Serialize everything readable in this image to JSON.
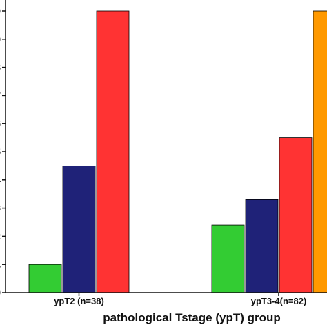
{
  "chart_data": {
    "type": "bar",
    "xlabel": "pathological Tstage (ypT) group",
    "ylabel": "",
    "ylim": [
      0,
      10
    ],
    "yticks": [
      0,
      1,
      2,
      3,
      4,
      5,
      6,
      7,
      8,
      9,
      10
    ],
    "categories": [
      "ypT2 (n=38)",
      "ypT3-4(n=82)"
    ],
    "series": [
      {
        "color": "#33cc33",
        "values": [
          1.0,
          2.4
        ]
      },
      {
        "color": "#1f2278",
        "values": [
          4.5,
          3.3
        ]
      },
      {
        "color": "#ff3333",
        "values": [
          10.0,
          5.5
        ]
      },
      {
        "color": "#ff9900",
        "values": [
          null,
          10.0
        ]
      }
    ],
    "grid": false,
    "legend": "none"
  }
}
